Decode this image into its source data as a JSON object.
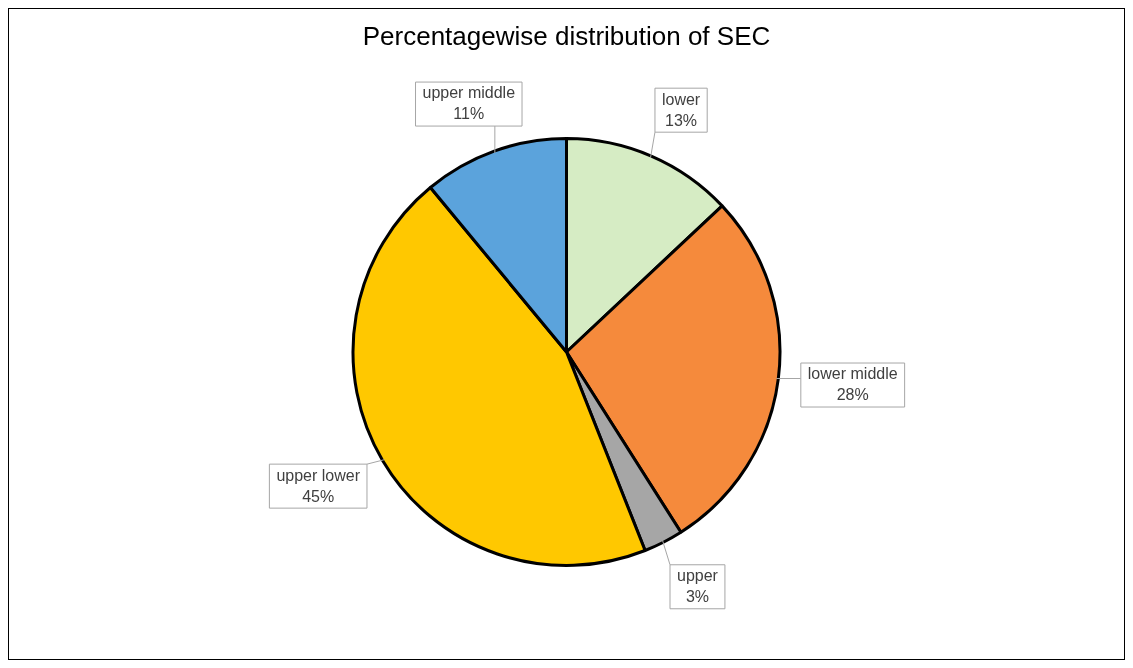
{
  "chart_data": {
    "type": "pie",
    "title": "Percentagewise distribution of SEC",
    "categories": [
      "lower",
      "lower middle",
      "upper",
      "upper lower",
      "upper middle"
    ],
    "values": [
      13,
      28,
      3,
      45,
      11
    ],
    "colors": [
      "#d6ecc4",
      "#f58a3c",
      "#a6a6a6",
      "#ffc800",
      "#5ba3dc"
    ],
    "value_labels": [
      "13%",
      "28%",
      "3%",
      "45%",
      "11%"
    ],
    "legend": false
  }
}
